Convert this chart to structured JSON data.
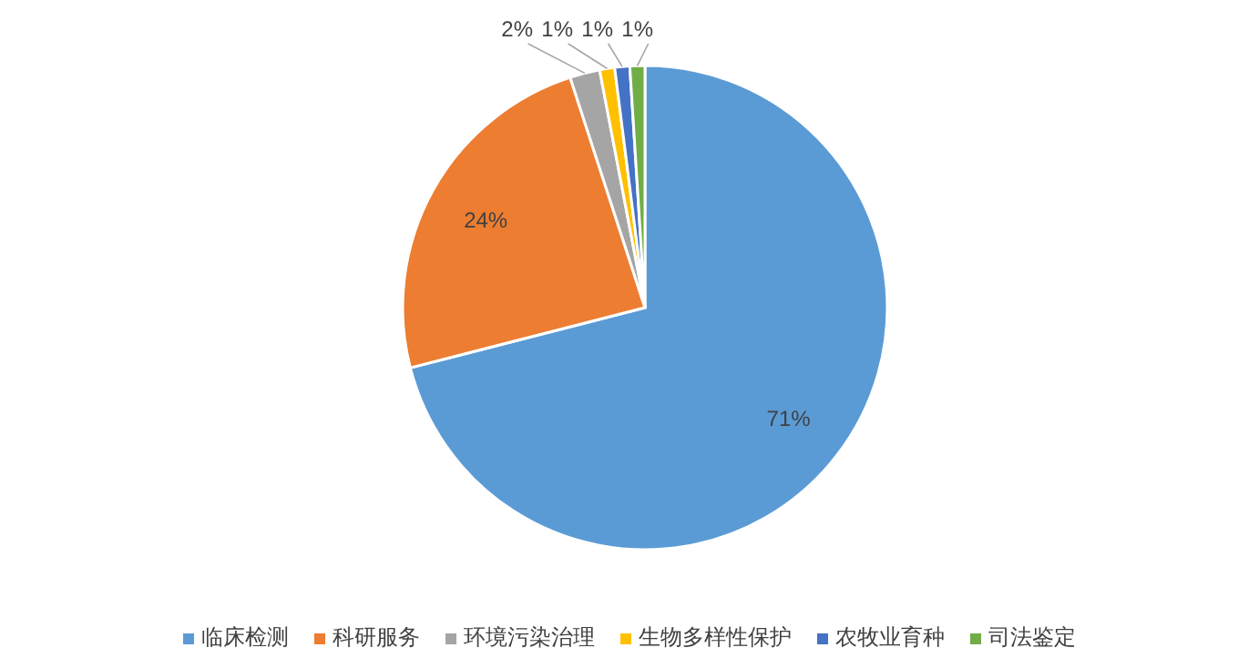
{
  "chart_data": {
    "type": "pie",
    "categories": [
      "临床检测",
      "科研服务",
      "环境污染治理",
      "生物多样性保护",
      "农牧业育种",
      "司法鉴定"
    ],
    "values": [
      71,
      24,
      2,
      1,
      1,
      1
    ],
    "colors": [
      "#5b9bd5",
      "#ed7d31",
      "#a5a5a5",
      "#ffc000",
      "#4472c4",
      "#70ad47"
    ],
    "value_labels": [
      "71%",
      "24%",
      "2%",
      "1%",
      "1%",
      "1%"
    ],
    "legend": "bottom"
  }
}
